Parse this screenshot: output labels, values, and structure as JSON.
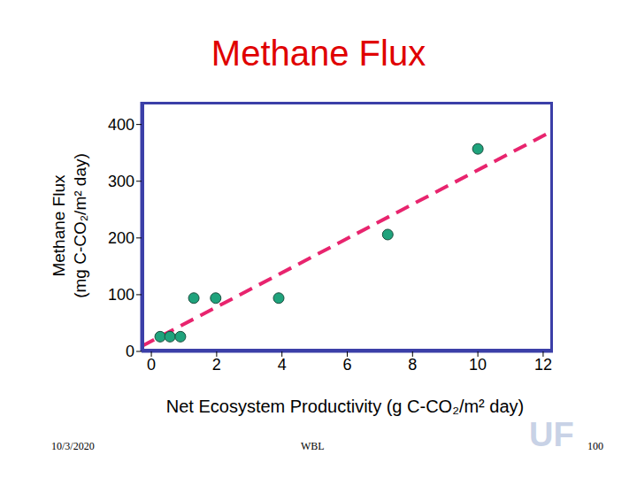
{
  "chart_data": {
    "type": "scatter",
    "title": "Methane Flux",
    "xlabel": "Net Ecosystem Productivity (g C-CO₂/m² day)",
    "ylabel": [
      "Methane Flux",
      "(mg C-CO₂/m² day)"
    ],
    "x": [
      0.27,
      0.57,
      0.89,
      1.3,
      1.97,
      3.9,
      7.24,
      10.0
    ],
    "values": [
      26,
      26,
      26,
      94,
      94,
      94,
      206,
      357
    ],
    "color": "#1fa37c",
    "marker": "circle",
    "fit": {
      "x": [
        -0.3,
        12.3
      ],
      "values": [
        9,
        389
      ],
      "color": "#e8246e",
      "line_style": "dashed"
    },
    "xlim": [
      -0.3,
      12.3
    ],
    "xticks": [
      0,
      2,
      4,
      6,
      8,
      10,
      12
    ],
    "ylim": [
      0,
      440
    ],
    "yticks": [
      0,
      100,
      200,
      300,
      400
    ],
    "grid": false,
    "annotations": [
      "10/3/2020",
      "WBL",
      "UF",
      "100"
    ]
  }
}
